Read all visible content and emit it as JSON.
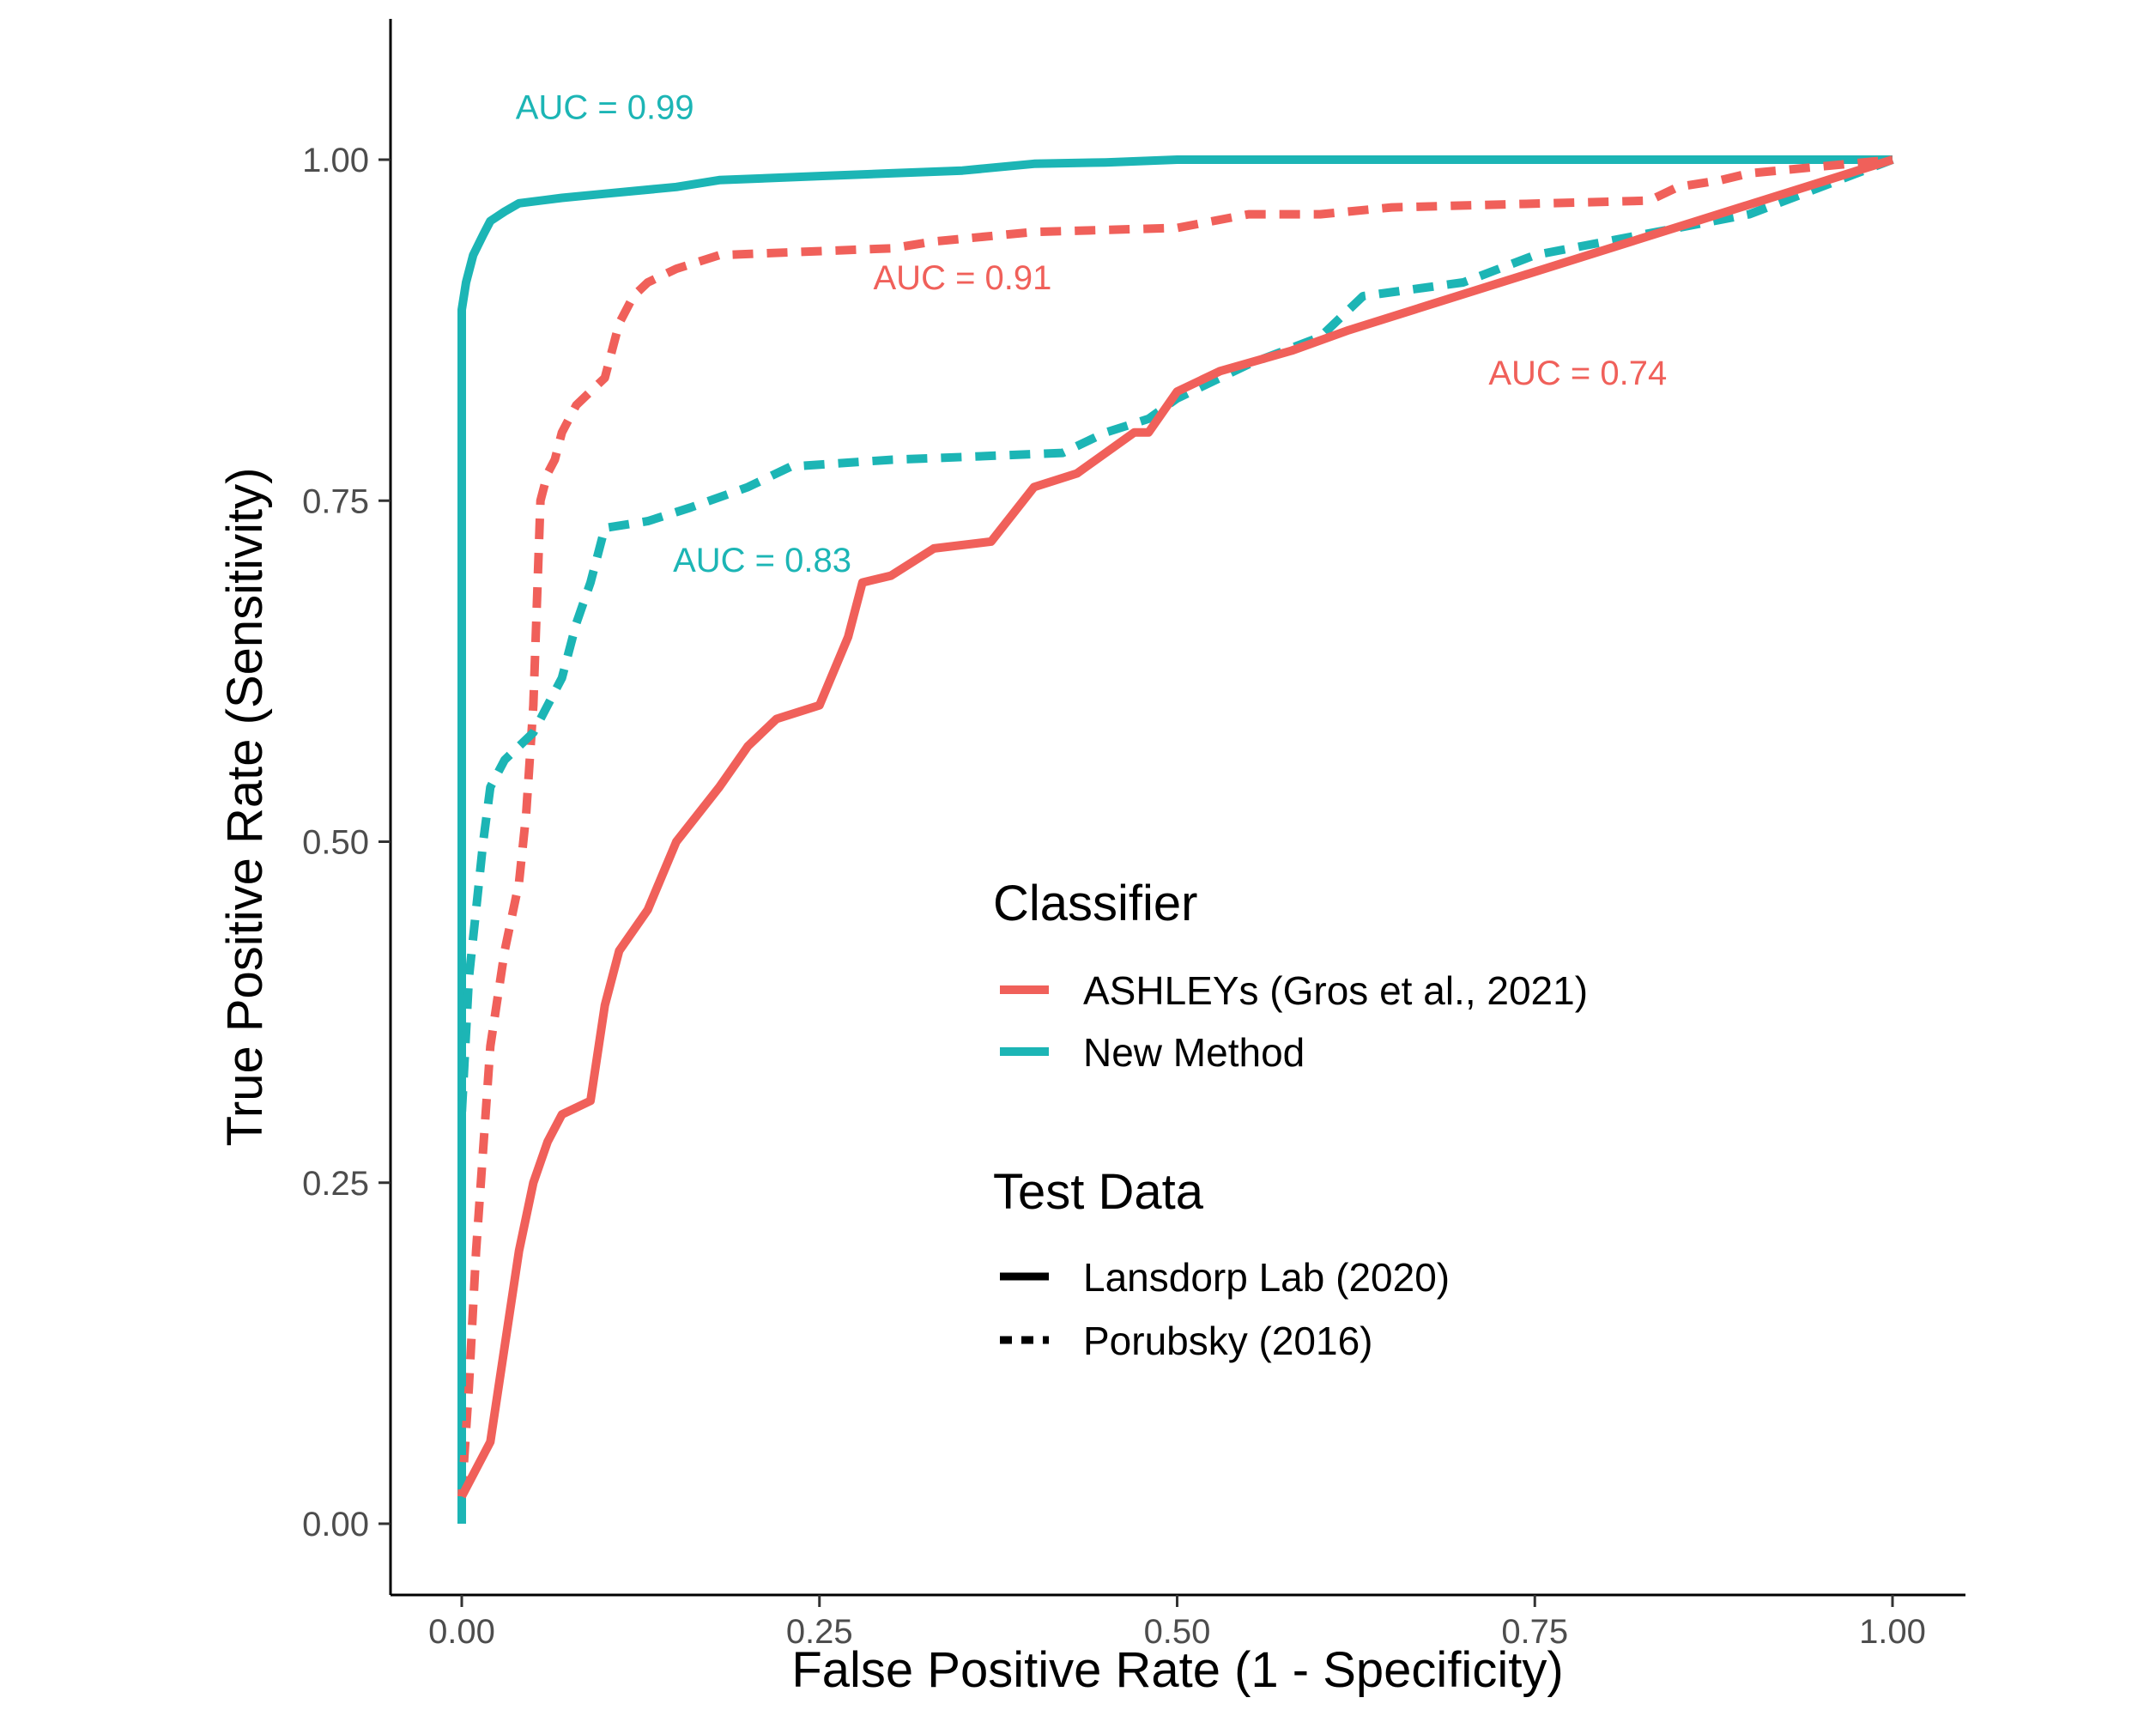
{
  "chart_data": {
    "type": "line",
    "title": "",
    "xlabel": "False Positive Rate (1 - Specificity)",
    "ylabel": "True Positive Rate (Sensitivity)",
    "xlim": [
      -0.05,
      1.05
    ],
    "ylim": [
      -0.05,
      1.1
    ],
    "xticks": [
      0.0,
      0.25,
      0.5,
      0.75,
      1.0
    ],
    "xtick_labels": [
      "0.00",
      "0.25",
      "0.50",
      "0.75",
      "1.00"
    ],
    "yticks": [
      0.0,
      0.25,
      0.5,
      0.75,
      1.0
    ],
    "ytick_labels": [
      "0.00",
      "0.25",
      "0.50",
      "0.75",
      "1.00"
    ],
    "grid": false,
    "legend": {
      "position": "right-inside",
      "color_title": "Classifier",
      "color_entries": [
        {
          "label": "ASHLEYs (Gros et al., 2021)",
          "color": "#F0605A"
        },
        {
          "label": "New Method",
          "color": "#1CB5B5"
        }
      ],
      "linetype_title": "Test Data",
      "linetype_entries": [
        {
          "label": "Lansdorp Lab (2020)",
          "linetype": "solid"
        },
        {
          "label": "Porubsky (2016)",
          "linetype": "dashed"
        }
      ]
    },
    "series": [
      {
        "classifier": "New Method",
        "test_data": "Lansdorp Lab (2020)",
        "color": "#1CB5B5",
        "linetype": "solid",
        "points": [
          [
            0,
            0
          ],
          [
            0,
            0.5
          ],
          [
            0,
            0.89
          ],
          [
            0.003,
            0.91
          ],
          [
            0.008,
            0.93
          ],
          [
            0.015,
            0.945
          ],
          [
            0.02,
            0.955
          ],
          [
            0.03,
            0.962
          ],
          [
            0.04,
            0.968
          ],
          [
            0.07,
            0.972
          ],
          [
            0.1,
            0.975
          ],
          [
            0.15,
            0.98
          ],
          [
            0.18,
            0.985
          ],
          [
            0.25,
            0.988
          ],
          [
            0.3,
            0.99
          ],
          [
            0.35,
            0.992
          ],
          [
            0.4,
            0.997
          ],
          [
            0.45,
            0.998
          ],
          [
            0.5,
            1.0
          ],
          [
            1.0,
            1.0
          ]
        ],
        "auc_label": "AUC = 0.99",
        "auc_label_pos": [
          0.1,
          1.03
        ]
      },
      {
        "classifier": "ASHLEYs (Gros et al., 2021)",
        "test_data": "Porubsky (2016)",
        "color": "#F0605A",
        "linetype": "dashed",
        "points": [
          [
            0,
            0.02
          ],
          [
            0.005,
            0.1
          ],
          [
            0.01,
            0.2
          ],
          [
            0.02,
            0.35
          ],
          [
            0.03,
            0.42
          ],
          [
            0.04,
            0.47
          ],
          [
            0.045,
            0.52
          ],
          [
            0.05,
            0.6
          ],
          [
            0.055,
            0.75
          ],
          [
            0.06,
            0.77
          ],
          [
            0.065,
            0.78
          ],
          [
            0.07,
            0.8
          ],
          [
            0.08,
            0.82
          ],
          [
            0.09,
            0.83
          ],
          [
            0.1,
            0.84
          ],
          [
            0.11,
            0.88
          ],
          [
            0.12,
            0.9
          ],
          [
            0.13,
            0.91
          ],
          [
            0.15,
            0.92
          ],
          [
            0.18,
            0.93
          ],
          [
            0.3,
            0.935
          ],
          [
            0.33,
            0.94
          ],
          [
            0.4,
            0.947
          ],
          [
            0.5,
            0.95
          ],
          [
            0.55,
            0.96
          ],
          [
            0.6,
            0.96
          ],
          [
            0.65,
            0.965
          ],
          [
            0.83,
            0.97
          ],
          [
            0.85,
            0.98
          ],
          [
            0.88,
            0.985
          ],
          [
            0.9,
            0.99
          ],
          [
            1.0,
            1.0
          ]
        ],
        "auc_label": "AUC = 0.91",
        "auc_label_pos": [
          0.35,
          0.905
        ]
      },
      {
        "classifier": "New Method",
        "test_data": "Porubsky (2016)",
        "color": "#1CB5B5",
        "linetype": "dashed",
        "points": [
          [
            0,
            0
          ],
          [
            0,
            0.3
          ],
          [
            0.005,
            0.4
          ],
          [
            0.01,
            0.45
          ],
          [
            0.015,
            0.5
          ],
          [
            0.02,
            0.54
          ],
          [
            0.03,
            0.56
          ],
          [
            0.05,
            0.58
          ],
          [
            0.07,
            0.62
          ],
          [
            0.08,
            0.66
          ],
          [
            0.09,
            0.69
          ],
          [
            0.1,
            0.73
          ],
          [
            0.13,
            0.735
          ],
          [
            0.16,
            0.745
          ],
          [
            0.2,
            0.76
          ],
          [
            0.23,
            0.775
          ],
          [
            0.3,
            0.78
          ],
          [
            0.35,
            0.782
          ],
          [
            0.42,
            0.785
          ],
          [
            0.45,
            0.8
          ],
          [
            0.48,
            0.81
          ],
          [
            0.5,
            0.825
          ],
          [
            0.55,
            0.85
          ],
          [
            0.6,
            0.87
          ],
          [
            0.63,
            0.9
          ],
          [
            0.7,
            0.91
          ],
          [
            0.75,
            0.93
          ],
          [
            0.8,
            0.94
          ],
          [
            0.85,
            0.95
          ],
          [
            0.9,
            0.96
          ],
          [
            1.0,
            1.0
          ]
        ],
        "auc_label": "AUC = 0.83",
        "auc_label_pos": [
          0.21,
          0.698
        ]
      },
      {
        "classifier": "ASHLEYs (Gros et al., 2021)",
        "test_data": "Lansdorp Lab (2020)",
        "color": "#F0605A",
        "linetype": "solid",
        "points": [
          [
            0,
            0.02
          ],
          [
            0.02,
            0.06
          ],
          [
            0.03,
            0.13
          ],
          [
            0.04,
            0.2
          ],
          [
            0.05,
            0.25
          ],
          [
            0.06,
            0.28
          ],
          [
            0.07,
            0.3
          ],
          [
            0.09,
            0.31
          ],
          [
            0.1,
            0.38
          ],
          [
            0.11,
            0.42
          ],
          [
            0.13,
            0.45
          ],
          [
            0.15,
            0.5
          ],
          [
            0.18,
            0.54
          ],
          [
            0.2,
            0.57
          ],
          [
            0.22,
            0.59
          ],
          [
            0.25,
            0.6
          ],
          [
            0.27,
            0.65
          ],
          [
            0.28,
            0.69
          ],
          [
            0.3,
            0.695
          ],
          [
            0.33,
            0.715
          ],
          [
            0.37,
            0.72
          ],
          [
            0.4,
            0.76
          ],
          [
            0.43,
            0.77
          ],
          [
            0.47,
            0.8
          ],
          [
            0.48,
            0.8
          ],
          [
            0.5,
            0.83
          ],
          [
            0.53,
            0.845
          ],
          [
            0.58,
            0.86
          ],
          [
            0.62,
            0.875
          ],
          [
            1.0,
            1.0
          ]
        ],
        "auc_label": "AUC = 0.74",
        "auc_label_pos": [
          0.78,
          0.835
        ]
      }
    ]
  }
}
